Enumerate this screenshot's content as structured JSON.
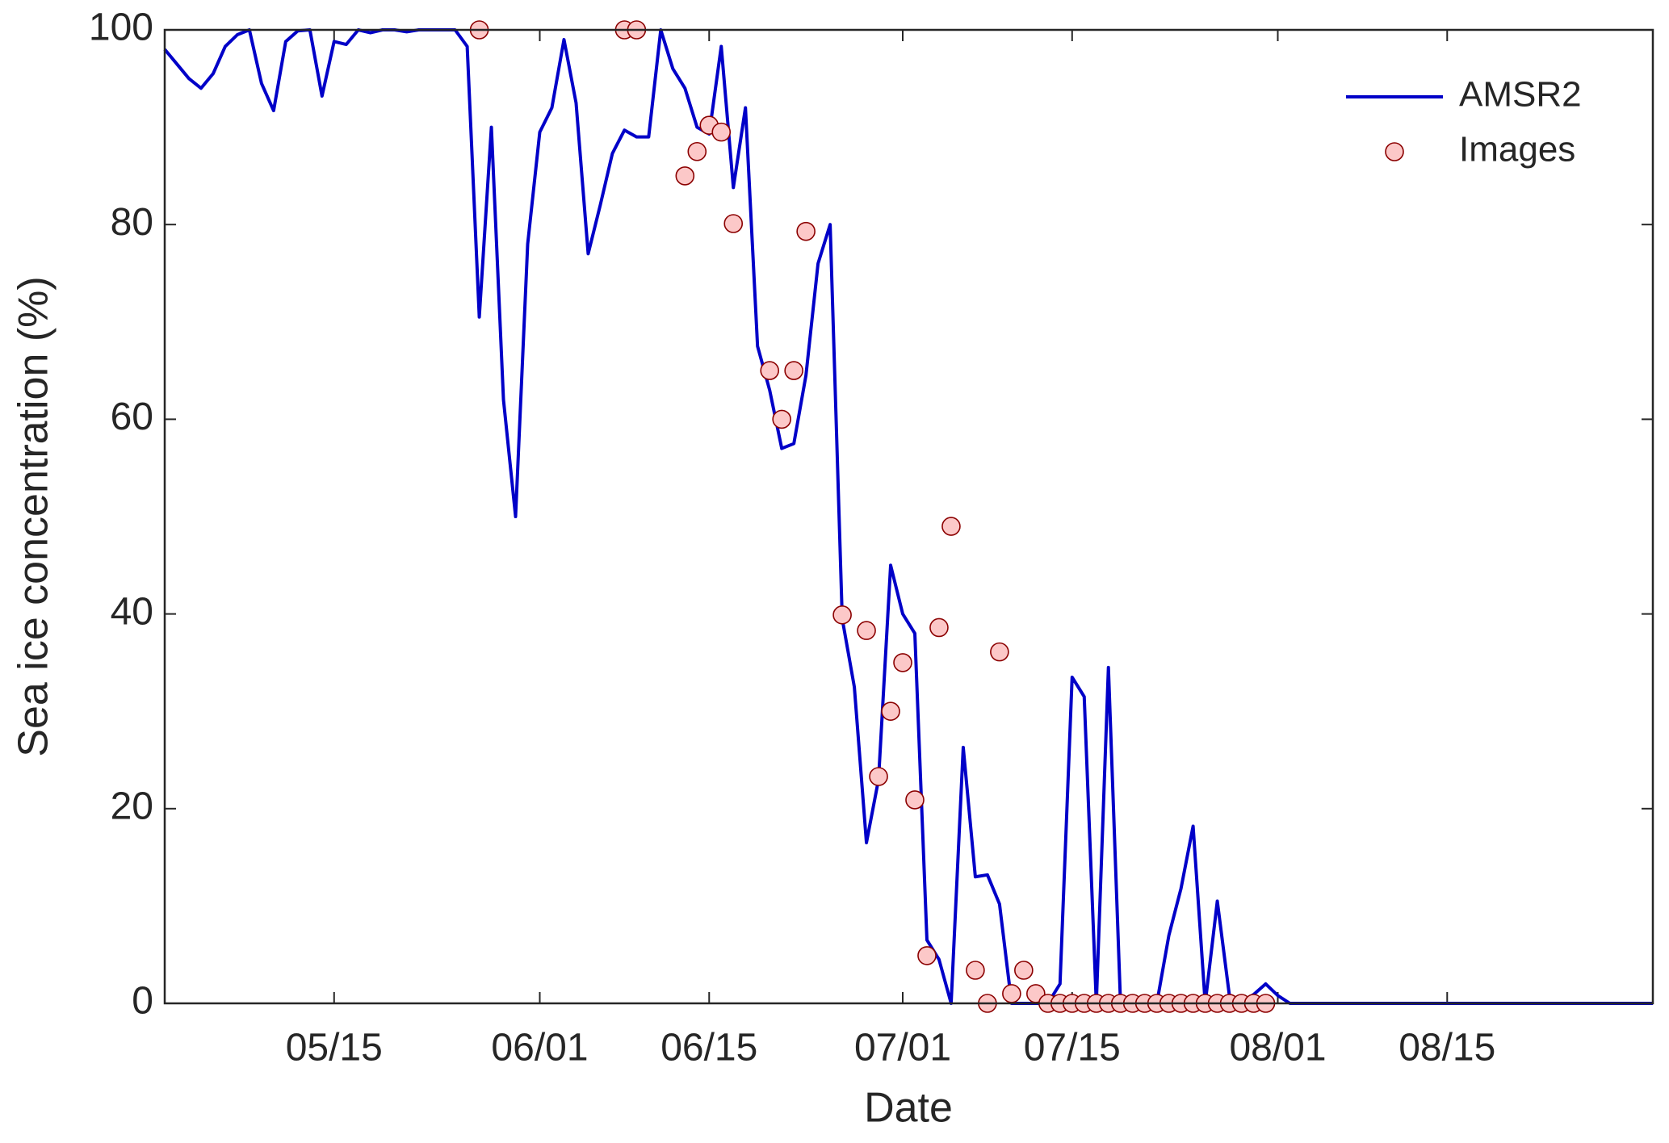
{
  "chart_data": {
    "type": "line",
    "xlabel": "Date",
    "ylabel": "Sea ice concentration (%)",
    "xlim": [
      121,
      244
    ],
    "ylim": [
      0,
      100
    ],
    "xticks": [
      {
        "value": 135,
        "label": "05/15"
      },
      {
        "value": 152,
        "label": "06/01"
      },
      {
        "value": 166,
        "label": "06/15"
      },
      {
        "value": 182,
        "label": "07/01"
      },
      {
        "value": 196,
        "label": "07/15"
      },
      {
        "value": 213,
        "label": "08/01"
      },
      {
        "value": 227,
        "label": "08/15"
      }
    ],
    "yticks": [
      0,
      20,
      40,
      60,
      80,
      100
    ],
    "legend": "upper right",
    "series": [
      {
        "name": "AMSR2",
        "type": "line",
        "color": "#0000c8",
        "x": [
          121,
          122,
          123,
          124,
          125,
          126,
          127,
          128,
          129,
          130,
          131,
          132,
          133,
          134,
          135,
          136,
          137,
          138,
          139,
          140,
          141,
          142,
          143,
          144,
          145,
          146,
          147,
          148,
          149,
          150,
          151,
          152,
          153,
          154,
          155,
          156,
          157,
          158,
          159,
          160,
          161,
          162,
          163,
          164,
          165,
          166,
          167,
          168,
          169,
          170,
          171,
          172,
          173,
          174,
          175,
          176,
          177,
          178,
          179,
          180,
          181,
          182,
          183,
          184,
          185,
          186,
          187,
          188,
          189,
          190,
          191,
          192,
          193,
          194,
          195,
          196,
          197,
          198,
          199,
          200,
          201,
          202,
          203,
          204,
          205,
          206,
          207,
          208,
          209,
          210,
          211,
          212,
          213,
          214,
          215,
          216,
          217,
          218,
          219,
          220,
          221,
          222,
          223,
          224,
          225,
          226,
          227,
          228,
          229,
          230,
          231,
          232,
          233,
          234,
          235,
          236,
          237,
          238,
          239,
          240,
          241,
          242,
          243,
          244
        ],
        "values": [
          98,
          96.5,
          95,
          94,
          95.5,
          98.3,
          99.5,
          100,
          94.5,
          91.7,
          98.8,
          99.9,
          100,
          93.2,
          98.8,
          98.5,
          100,
          99.7,
          100,
          100,
          99.8,
          100,
          100,
          100,
          100,
          98.3,
          70.5,
          90,
          62,
          50,
          78,
          89.5,
          92,
          99,
          92.5,
          77,
          82,
          87.3,
          89.7,
          89,
          89,
          100,
          96,
          94,
          90,
          89.3,
          98.3,
          83.8,
          92,
          67.5,
          63,
          57,
          57.5,
          64.5,
          76,
          80,
          39.5,
          32.5,
          16.5,
          23,
          45,
          40,
          38,
          6.5,
          4.5,
          0,
          26.3,
          13,
          13.2,
          10.2,
          0,
          0,
          0,
          0,
          2,
          33.5,
          31.5,
          0,
          34.5,
          0,
          0,
          0,
          0,
          7,
          11.8,
          18.2,
          0,
          10.5,
          0.8,
          0.2,
          0.9,
          2,
          0.8,
          0,
          0,
          0,
          0,
          0,
          0,
          0,
          0,
          0,
          0,
          0,
          0,
          0,
          0,
          0,
          0,
          0,
          0,
          0,
          0,
          0,
          0,
          0,
          0,
          0,
          0,
          0,
          0,
          0,
          0,
          0
        ]
      },
      {
        "name": "Images",
        "type": "scatter",
        "color": "#fcc8c8",
        "edgecolor": "#8b0000",
        "x": [
          147,
          159,
          160,
          164,
          165,
          166,
          167,
          168,
          171,
          172,
          173,
          174,
          177,
          179,
          180,
          181,
          182,
          183,
          184,
          185,
          186,
          188,
          189,
          190,
          191,
          192,
          193,
          194,
          195,
          196,
          197,
          198,
          199,
          200,
          201,
          202,
          203,
          204,
          205,
          206,
          207,
          208,
          209,
          210,
          211,
          212
        ],
        "values": [
          100,
          100,
          100,
          85,
          87.5,
          90.2,
          89.5,
          80.1,
          65,
          60,
          65,
          79.3,
          39.9,
          38.3,
          23.3,
          30,
          35,
          20.9,
          4.9,
          38.6,
          49,
          3.4,
          0,
          36.1,
          1,
          3.4,
          1,
          0,
          0,
          0,
          0,
          0,
          0,
          0,
          0,
          0,
          0,
          0,
          0,
          0,
          0,
          0,
          0,
          0,
          0,
          0
        ]
      }
    ]
  }
}
